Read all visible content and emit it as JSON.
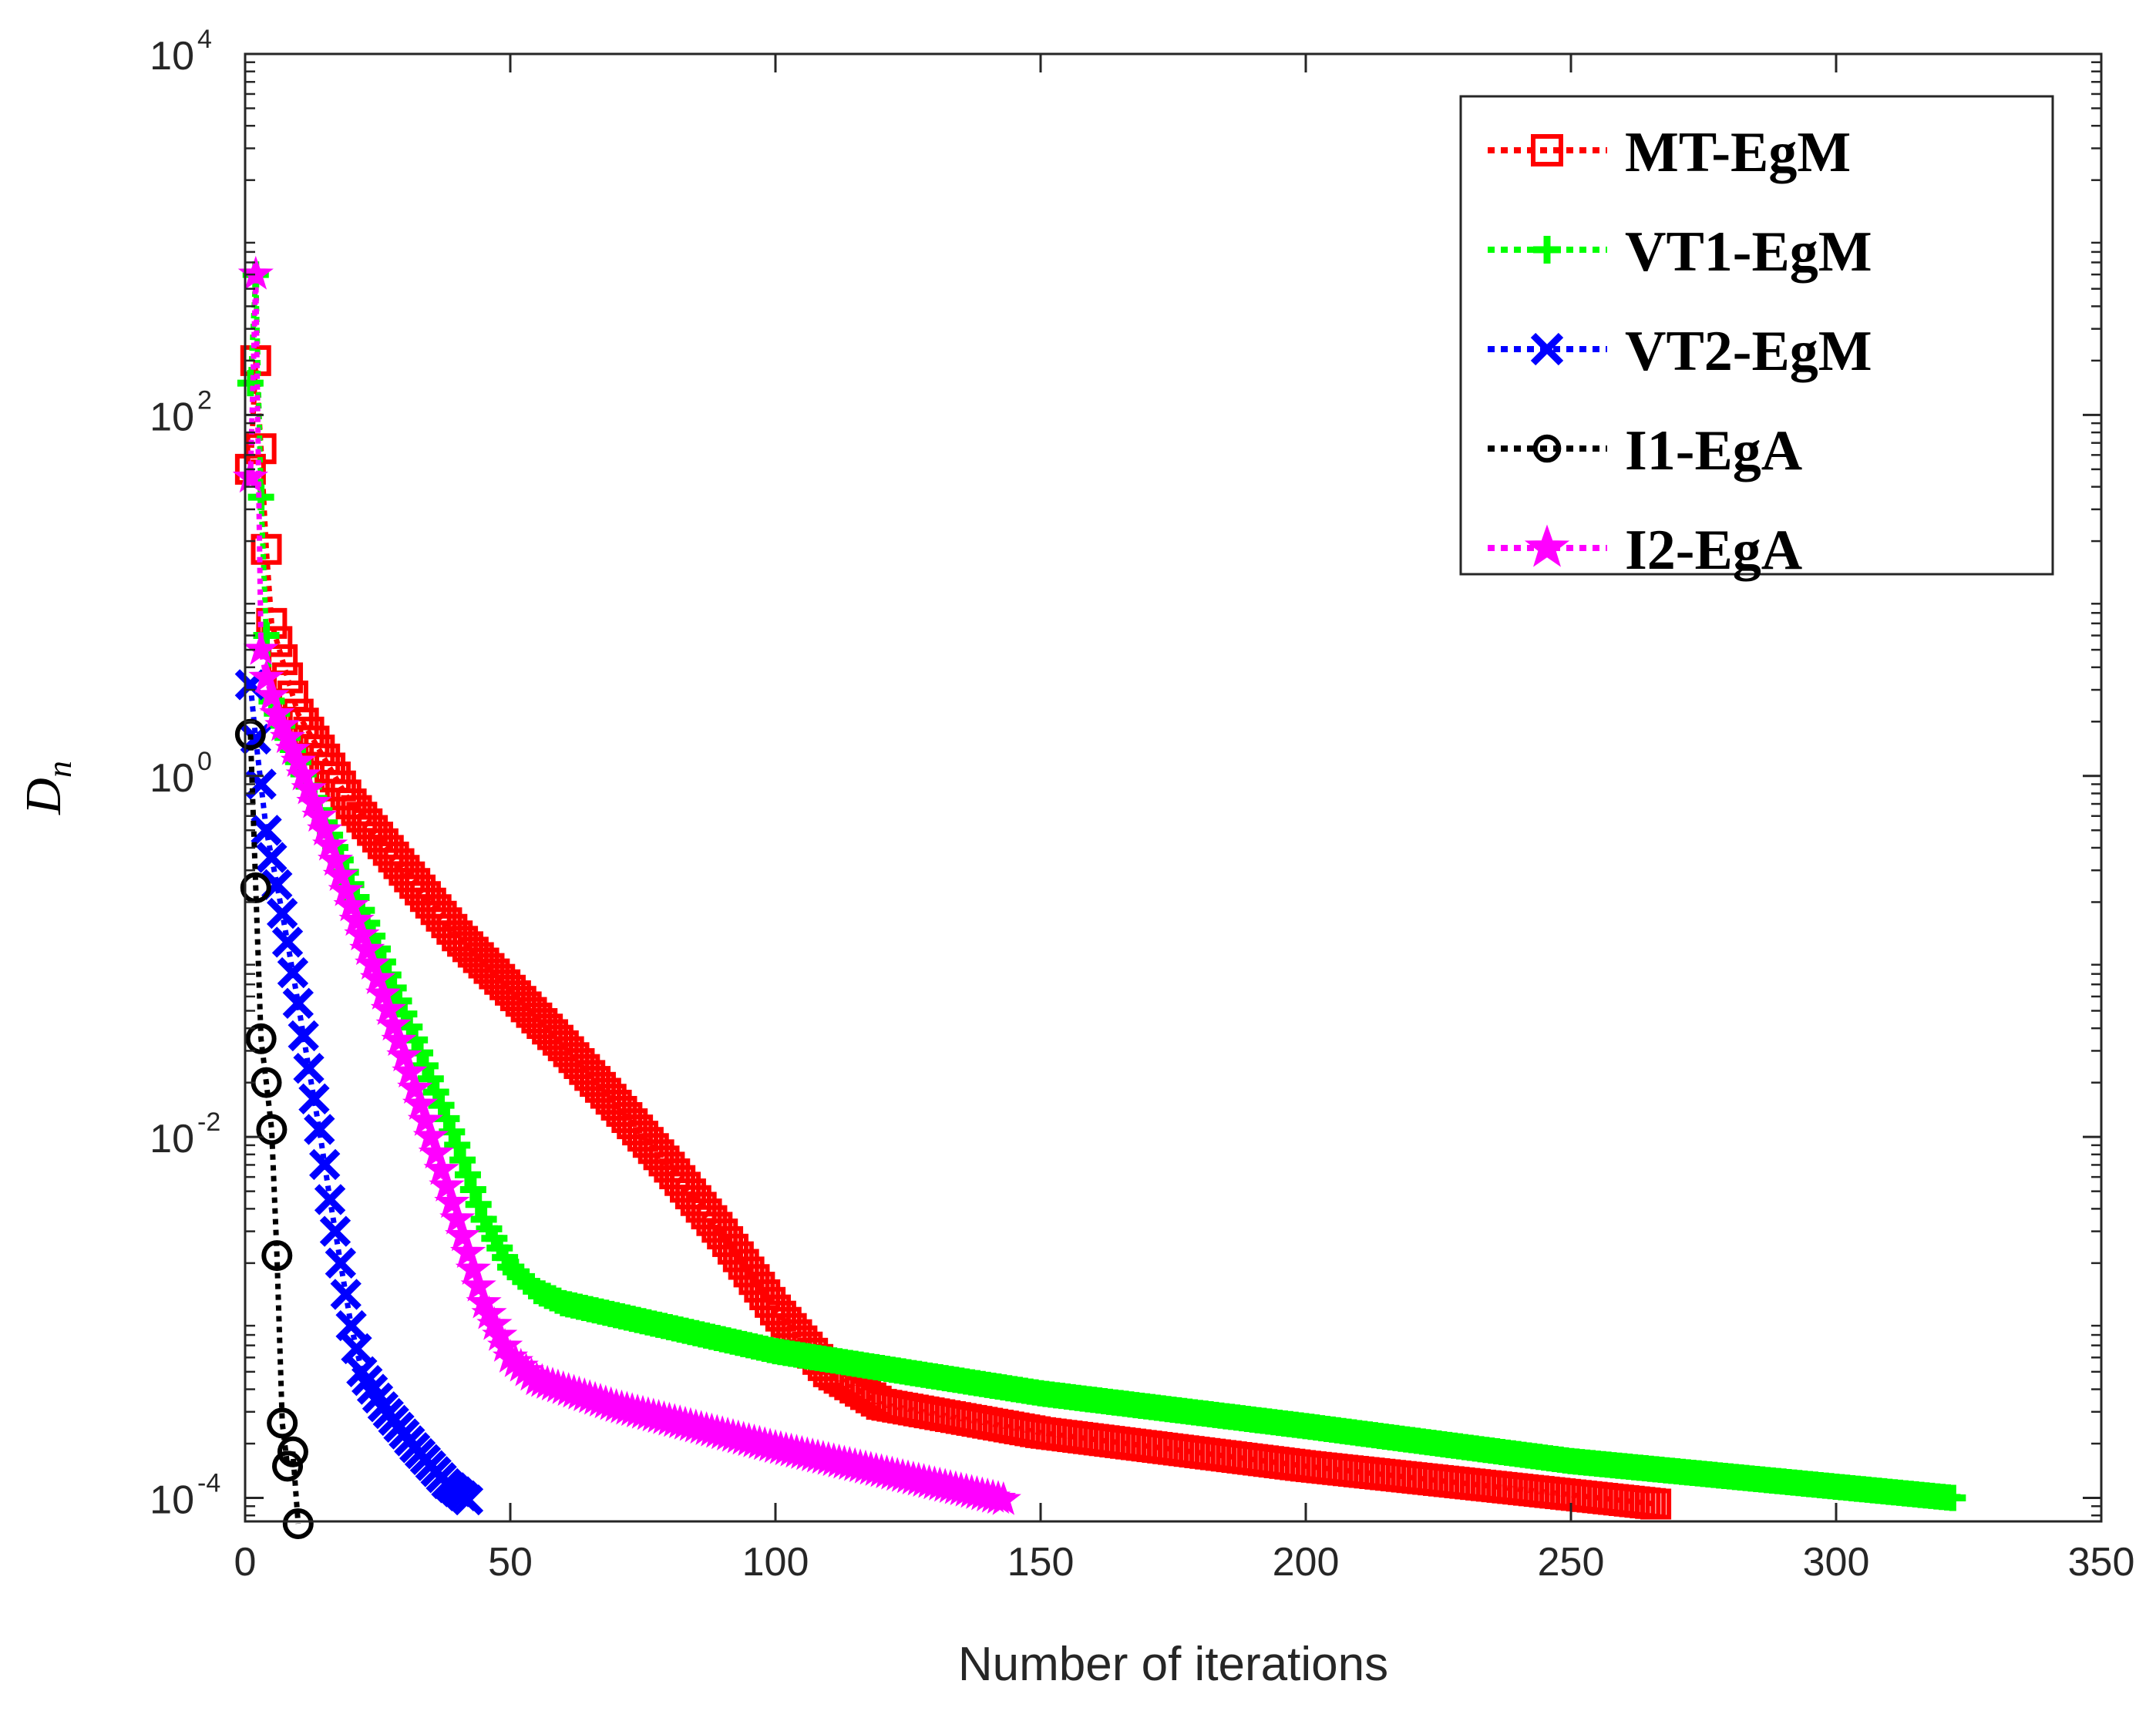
{
  "chart_data": {
    "type": "line",
    "title": "",
    "xlabel": "Number of iterations",
    "ylabel": "D",
    "ylabel_subscript": "n",
    "xscale": "linear",
    "yscale": "log",
    "xlim": [
      0,
      350
    ],
    "ylim_exponents": [
      -4.13,
      4
    ],
    "xticks": [
      "0",
      "50",
      "100",
      "150",
      "200",
      "250",
      "300",
      "350"
    ],
    "yticks": [
      {
        "base": "10",
        "exp": "-4"
      },
      {
        "base": "10",
        "exp": "-2"
      },
      {
        "base": "10",
        "exp": "0"
      },
      {
        "base": "10",
        "exp": "2"
      },
      {
        "base": "10",
        "exp": "4"
      }
    ],
    "grid": false,
    "legend_position": "top-right",
    "series": [
      {
        "name": "MT-EgM",
        "color": "#ff0000",
        "marker": "square",
        "n_end": 266,
        "keypoints": [
          [
            1,
            50
          ],
          [
            2,
            200
          ],
          [
            3,
            65
          ],
          [
            4,
            18
          ],
          [
            5,
            7
          ],
          [
            10,
            2.2
          ],
          [
            20,
            0.7
          ],
          [
            30,
            0.3
          ],
          [
            40,
            0.13
          ],
          [
            50,
            0.065
          ],
          [
            60,
            0.032
          ],
          [
            70,
            0.015
          ],
          [
            80,
            0.0068
          ],
          [
            90,
            0.0029
          ],
          [
            100,
            0.0011
          ],
          [
            110,
            0.0005
          ],
          [
            120,
            0.00033
          ],
          [
            150,
            0.00023
          ],
          [
            200,
            0.00015
          ],
          [
            266,
            9.25e-05
          ]
        ]
      },
      {
        "name": "VT1-EgM",
        "color": "#00ff00",
        "marker": "plus",
        "n_end": 322,
        "keypoints": [
          [
            1,
            150
          ],
          [
            2,
            600
          ],
          [
            3,
            35
          ],
          [
            4,
            6
          ],
          [
            5,
            2.6
          ],
          [
            10,
            1.2
          ],
          [
            15,
            0.55
          ],
          [
            20,
            0.25
          ],
          [
            25,
            0.11
          ],
          [
            30,
            0.048
          ],
          [
            35,
            0.021
          ],
          [
            40,
            0.009
          ],
          [
            45,
            0.0035
          ],
          [
            50,
            0.0019
          ],
          [
            55,
            0.0014
          ],
          [
            60,
            0.0012
          ],
          [
            100,
            0.00065
          ],
          [
            150,
            0.00038
          ],
          [
            200,
            0.00025
          ],
          [
            250,
            0.00016
          ],
          [
            322,
            0.0001
          ]
        ]
      },
      {
        "name": "VT2-EgM",
        "color": "#0000ff",
        "marker": "x",
        "n_end": 42,
        "keypoints": [
          [
            1,
            3.2
          ],
          [
            2,
            1.6
          ],
          [
            3,
            0.9
          ],
          [
            4,
            0.5
          ],
          [
            6,
            0.25
          ],
          [
            8,
            0.12
          ],
          [
            10,
            0.055
          ],
          [
            12,
            0.024
          ],
          [
            14,
            0.011
          ],
          [
            16,
            0.0045
          ],
          [
            18,
            0.002
          ],
          [
            20,
            0.0009
          ],
          [
            22,
            0.0005
          ],
          [
            26,
            0.00032
          ],
          [
            32,
            0.00019
          ],
          [
            38,
            0.00012
          ],
          [
            42,
            9.75e-05
          ]
        ]
      },
      {
        "name": "I1-EgA",
        "color": "#000000",
        "marker": "circle",
        "n_end": 10,
        "keypoints": [
          [
            1,
            1.7
          ],
          [
            2,
            0.24
          ],
          [
            3,
            0.035
          ],
          [
            4,
            0.02
          ],
          [
            5,
            0.011
          ],
          [
            6,
            0.0022
          ],
          [
            7,
            0.00026
          ],
          [
            8,
            0.00015
          ],
          [
            9,
            0.00018
          ],
          [
            10,
            7.2e-05
          ]
        ]
      },
      {
        "name": "I2-EgA",
        "color": "#ff00ff",
        "marker": "star",
        "n_end": 143,
        "keypoints": [
          [
            1,
            45
          ],
          [
            2,
            600
          ],
          [
            3,
            5
          ],
          [
            4,
            3.5
          ],
          [
            6,
            2.2
          ],
          [
            10,
            1.2
          ],
          [
            15,
            0.5
          ],
          [
            20,
            0.19
          ],
          [
            25,
            0.075
          ],
          [
            30,
            0.028
          ],
          [
            35,
            0.01
          ],
          [
            40,
            0.0035
          ],
          [
            45,
            0.0012
          ],
          [
            50,
            0.0006
          ],
          [
            55,
            0.00045
          ],
          [
            70,
            0.00032
          ],
          [
            100,
            0.00019
          ],
          [
            143,
            9.75e-05
          ]
        ]
      }
    ]
  }
}
